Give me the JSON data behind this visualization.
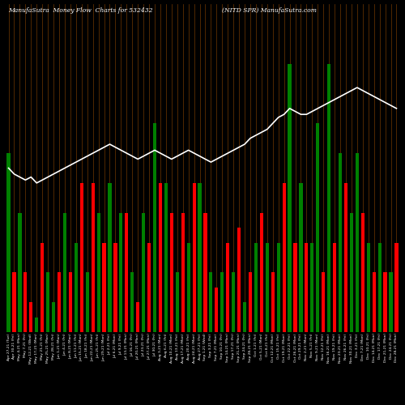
{
  "title_left": "ManufaSutra  Money Flow  Charts for 532432",
  "title_right": "(NITD SPR) ManufaSutra.com",
  "background_color": "#000000",
  "grid_color": "#8B4500",
  "bar_values": [
    6,
    2,
    4,
    2,
    1,
    0.5,
    3,
    2,
    1,
    2,
    4,
    2,
    3,
    5,
    2,
    5,
    4,
    3,
    5,
    3,
    4,
    4,
    2,
    1,
    4,
    3,
    7,
    5,
    5,
    4,
    2,
    4,
    3,
    5,
    5,
    4,
    2,
    1.5,
    2,
    3,
    2,
    3.5,
    1,
    2,
    3,
    4,
    3,
    2,
    3,
    5,
    9,
    3,
    5,
    3,
    3,
    7,
    2,
    9,
    3,
    6,
    5,
    4,
    6,
    4,
    3,
    2,
    3,
    2,
    2,
    3
  ],
  "bar_colors": [
    "green",
    "red",
    "green",
    "red",
    "red",
    "green",
    "red",
    "green",
    "green",
    "red",
    "green",
    "red",
    "green",
    "red",
    "green",
    "red",
    "green",
    "red",
    "green",
    "red",
    "green",
    "red",
    "green",
    "red",
    "green",
    "red",
    "green",
    "red",
    "green",
    "red",
    "green",
    "red",
    "green",
    "red",
    "green",
    "red",
    "green",
    "red",
    "green",
    "red",
    "green",
    "red",
    "green",
    "red",
    "green",
    "red",
    "green",
    "red",
    "green",
    "red",
    "green",
    "red",
    "green",
    "red",
    "green",
    "green",
    "red",
    "green",
    "red",
    "green",
    "red",
    "green",
    "green",
    "red",
    "green",
    "red",
    "green",
    "red",
    "green",
    "red"
  ],
  "line_y": [
    5.5,
    5.3,
    5.2,
    5.1,
    5.2,
    5.0,
    5.1,
    5.2,
    5.3,
    5.4,
    5.5,
    5.6,
    5.7,
    5.8,
    5.9,
    6.0,
    6.1,
    6.2,
    6.3,
    6.2,
    6.1,
    6.0,
    5.9,
    5.8,
    5.9,
    6.0,
    6.1,
    6.0,
    5.9,
    5.8,
    5.9,
    6.0,
    6.1,
    6.0,
    5.9,
    5.8,
    5.7,
    5.8,
    5.9,
    6.0,
    6.1,
    6.2,
    6.3,
    6.5,
    6.6,
    6.7,
    6.8,
    7.0,
    7.2,
    7.3,
    7.5,
    7.4,
    7.3,
    7.3,
    7.4,
    7.5,
    7.6,
    7.7,
    7.8,
    7.9,
    8.0,
    8.1,
    8.2,
    8.1,
    8.0,
    7.9,
    7.8,
    7.7,
    7.6,
    7.5
  ],
  "x_labels": [
    "Apr 27,21 (Tue)",
    "Apr 30,21 (Fri)",
    "May 4,21 (Mon)",
    "May 7,21 (Fri)",
    "May 12,21 (Wed)",
    "May 17,21 (Mon)",
    "May 21,21 (Fri)",
    "May 25,21 (Mon)",
    "May 28,21 (Fri)",
    "Jun 1,21 (Mon)",
    "Jun 4,21 (Fri)",
    "Jun 8,21 (Mon)",
    "Jun 11,21 (Fri)",
    "Jun 15,21 (Mon)",
    "Jun 18,21 (Fri)",
    "Jun 22,21 (Mon)",
    "Jun 25,21 (Fri)",
    "Jun 29,21 (Mon)",
    "Jul 2,21 (Fri)",
    "Jul 6,21 (Mon)",
    "Jul 9,21 (Fri)",
    "Jul 13,21 (Mon)",
    "Jul 16,21 (Fri)",
    "Jul 20,21 (Mon)",
    "Jul 23,21 (Fri)",
    "Jul 27,21 (Mon)",
    "Jul 30,21 (Fri)",
    "Aug 3,21 (Mon)",
    "Aug 6,21 (Fri)",
    "Aug 10,21 (Mon)",
    "Aug 13,21 (Fri)",
    "Aug 17,21 (Mon)",
    "Aug 20,21 (Fri)",
    "Aug 24,21 (Mon)",
    "Aug 27,21 (Fri)",
    "Sep 1,21 (Wed)",
    "Sep 3,21 (Fri)",
    "Sep 7,21 (Mon)",
    "Sep 10,21 (Fri)",
    "Sep 14,21 (Mon)",
    "Sep 17,21 (Fri)",
    "Sep 21,21 (Mon)",
    "Sep 24,21 (Fri)",
    "Sep 28,21 (Mon)",
    "Oct 1,21 (Fri)",
    "Oct 5,21 (Mon)",
    "Oct 8,21 (Fri)",
    "Oct 12,21 (Mon)",
    "Oct 15,21 (Fri)",
    "Oct 19,21 (Mon)",
    "Oct 22,21 (Fri)",
    "Oct 26,21 (Mon)",
    "Oct 29,21 (Fri)",
    "Nov 2,21 (Mon)",
    "Nov 5,21 (Fri)",
    "Nov 9,21 (Mon)",
    "Nov 12,21 (Fri)",
    "Nov 16,21 (Mon)",
    "Nov 19,21 (Fri)",
    "Nov 23,21 (Mon)",
    "Nov 26,21 (Fri)",
    "Nov 30,21 (Mon)",
    "Dec 3,21 (Fri)",
    "Dec 7,21 (Mon)",
    "Dec 10,21 (Fri)",
    "Dec 14,21 (Mon)",
    "Dec 17,21 (Fri)",
    "Dec 21,21 (Mon)",
    "Dec 24,21 (Fri)",
    "Dec 28,21 (Mon)"
  ]
}
